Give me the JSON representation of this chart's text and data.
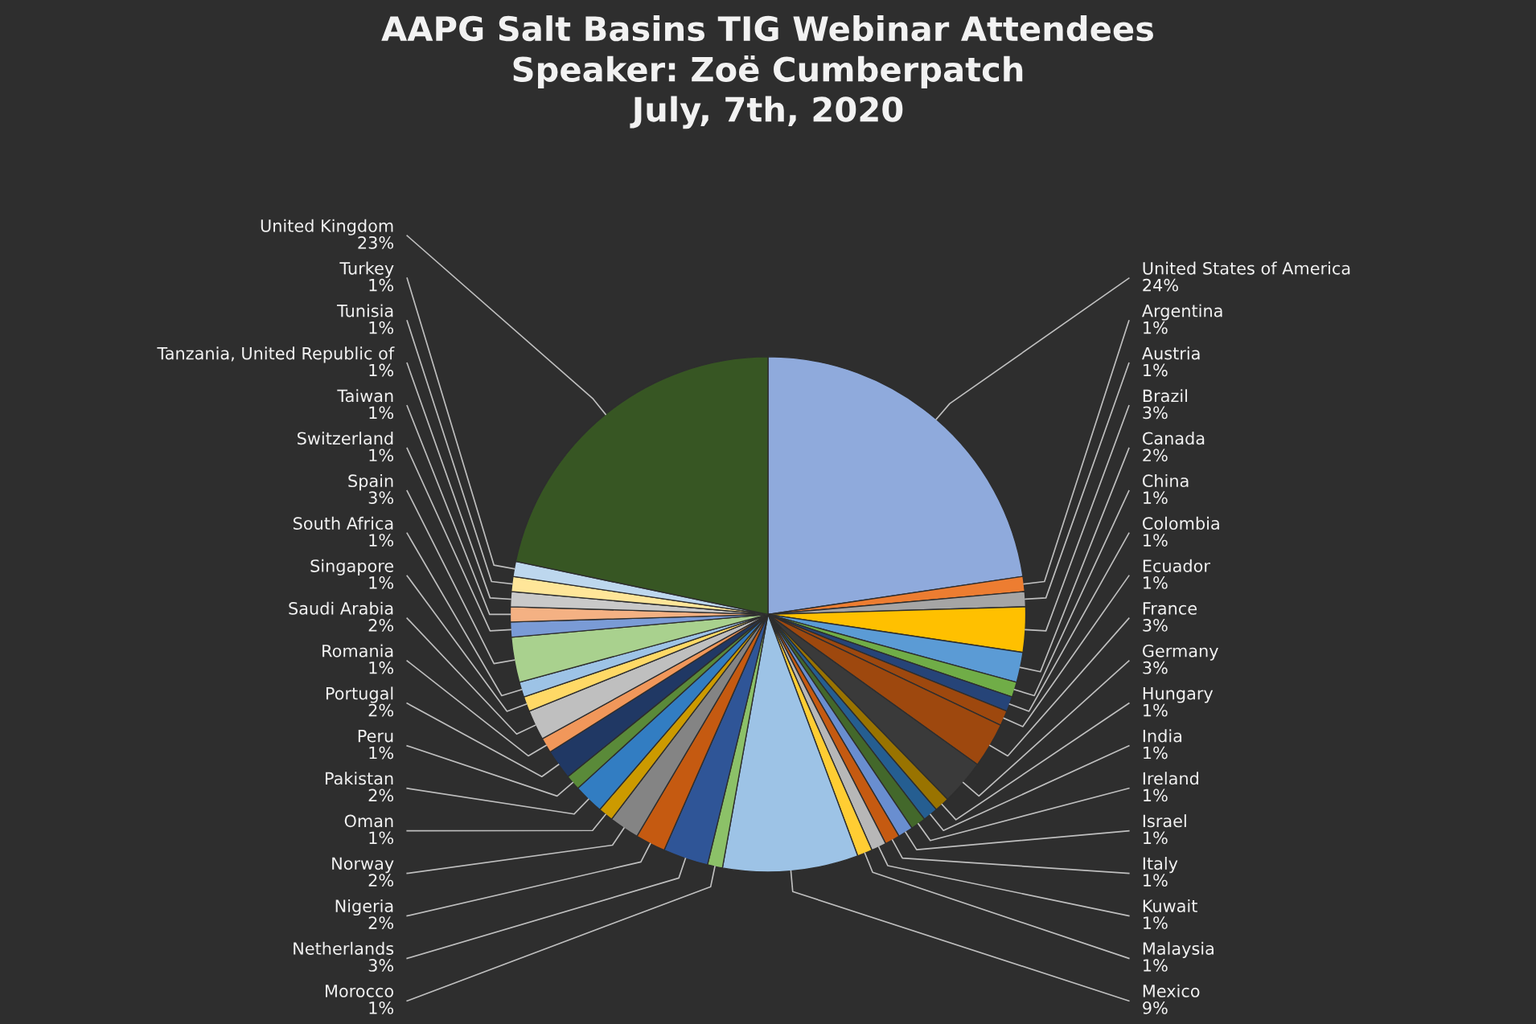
{
  "chart_data": {
    "type": "pie",
    "title": "AAPG Salt Basins TIG Webinar Attendees\nSpeaker: Zoë Cumberpatch\nJuly, 7th, 2020",
    "categories": [
      "United States of America",
      "Argentina",
      "Austria",
      "Brazil",
      "Canada",
      "China",
      "Colombia",
      "Ecuador",
      "France",
      "Germany",
      "Hungary",
      "India",
      "Ireland",
      "Israel",
      "Italy",
      "Kuwait",
      "Malaysia",
      "Mexico",
      "Morocco",
      "Netherlands",
      "Nigeria",
      "Norway",
      "Oman",
      "Pakistan",
      "Peru",
      "Portugal",
      "Romania",
      "Saudi Arabia",
      "Singapore",
      "South Africa",
      "Spain",
      "Switzerland",
      "Taiwan",
      "Tanzania, United Republic of",
      "Tunisia",
      "Turkey",
      "United Kingdom"
    ],
    "values": [
      24,
      1,
      1,
      3,
      2,
      1,
      1,
      1,
      3,
      3,
      1,
      1,
      1,
      1,
      1,
      1,
      1,
      9,
      1,
      3,
      2,
      2,
      1,
      2,
      1,
      2,
      1,
      2,
      1,
      1,
      3,
      1,
      1,
      1,
      1,
      1,
      23
    ],
    "value_labels": [
      "24%",
      "1%",
      "1%",
      "3%",
      "2%",
      "1%",
      "1%",
      "1%",
      "3%",
      "3%",
      "1%",
      "1%",
      "1%",
      "1%",
      "1%",
      "1%",
      "1%",
      "9%",
      "1%",
      "3%",
      "2%",
      "2%",
      "1%",
      "2%",
      "1%",
      "2%",
      "1%",
      "2%",
      "1%",
      "1%",
      "3%",
      "1%",
      "1%",
      "1%",
      "1%",
      "1%",
      "23%"
    ],
    "colors": [
      "#8faadc",
      "#ed7d31",
      "#a5a5a5",
      "#ffc000",
      "#5b9bd5",
      "#70ad47",
      "#264478",
      "#9e480e",
      "#9e480e",
      "#3a3a3a",
      "#997300",
      "#255e91",
      "#43682b",
      "#698ed0",
      "#c55a11",
      "#b7b7b7",
      "#ffcd33",
      "#9dc3e6",
      "#8cc168",
      "#2f5597",
      "#c55a11",
      "#848484",
      "#cc9a00",
      "#327dc2",
      "#5a8a39",
      "#203864",
      "#f1975a",
      "#bfbfbf",
      "#ffd966",
      "#9dc3e6",
      "#a9d18e",
      "#7a9bd6",
      "#f4b183",
      "#c9c9c9",
      "#ffe699",
      "#bdd7ee",
      "#375623"
    ],
    "legend": false
  }
}
